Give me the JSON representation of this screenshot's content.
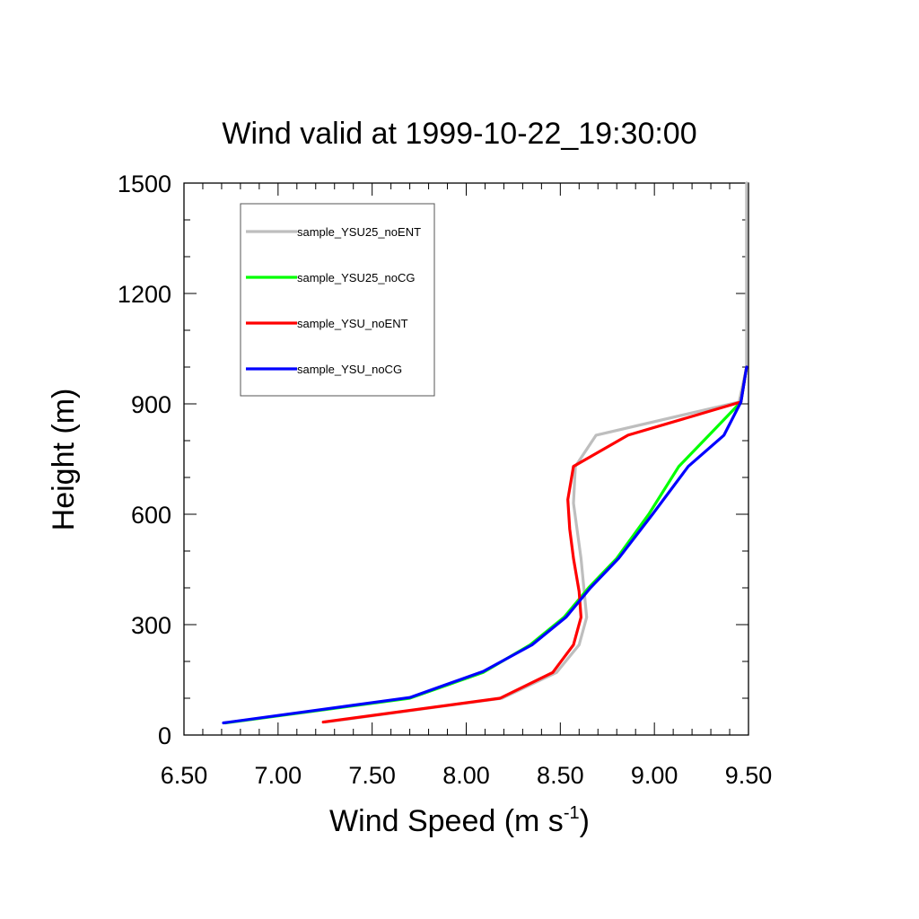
{
  "chart_data": {
    "type": "line",
    "title": "Wind valid at 1999-10-22_19:30:00",
    "xlabel": "Wind Speed (m s",
    "xlabel_sup": "-1",
    "xlabel_end": ")",
    "ylabel": "Height (m)",
    "xlim": [
      6.5,
      9.5
    ],
    "ylim": [
      0,
      1500
    ],
    "xticks": [
      6.5,
      7.0,
      7.5,
      8.0,
      8.5,
      9.0,
      9.5
    ],
    "xtick_labels": [
      "6.50",
      "7.00",
      "7.50",
      "8.00",
      "8.50",
      "9.00",
      "9.50"
    ],
    "yticks": [
      0,
      300,
      600,
      900,
      1200,
      1500
    ],
    "ytick_labels": [
      "0",
      "300",
      "600",
      "900",
      "1200",
      "1500"
    ],
    "grid": false,
    "legend_position": "top-left",
    "series": [
      {
        "name": "sample_YSU25_noENT",
        "color": "#bebebe",
        "points": [
          [
            7.25,
            35
          ],
          [
            8.19,
            100
          ],
          [
            8.48,
            170
          ],
          [
            8.6,
            245
          ],
          [
            8.64,
            320
          ],
          [
            8.61,
            480
          ],
          [
            8.57,
            630
          ],
          [
            8.58,
            730
          ],
          [
            8.69,
            815
          ],
          [
            9.45,
            905
          ],
          [
            9.49,
            1000
          ],
          [
            9.49,
            1200
          ],
          [
            9.49,
            1500
          ]
        ]
      },
      {
        "name": "sample_YSU25_noCG",
        "color": "#00ff00",
        "points": [
          [
            6.72,
            33
          ],
          [
            7.7,
            100
          ],
          [
            8.09,
            170
          ],
          [
            8.34,
            245
          ],
          [
            8.52,
            320
          ],
          [
            8.65,
            400
          ],
          [
            8.8,
            480
          ],
          [
            8.97,
            600
          ],
          [
            9.13,
            730
          ],
          [
            9.3,
            820
          ],
          [
            9.46,
            905
          ],
          [
            9.49,
            1000
          ]
        ]
      },
      {
        "name": "sample_YSU_noENT",
        "color": "#ff0000",
        "points": [
          [
            7.24,
            35
          ],
          [
            8.18,
            100
          ],
          [
            8.46,
            170
          ],
          [
            8.57,
            245
          ],
          [
            8.61,
            320
          ],
          [
            8.6,
            390
          ],
          [
            8.57,
            480
          ],
          [
            8.55,
            560
          ],
          [
            8.54,
            640
          ],
          [
            8.57,
            730
          ],
          [
            8.86,
            815
          ],
          [
            9.46,
            905
          ],
          [
            9.49,
            1000
          ]
        ]
      },
      {
        "name": "sample_YSU_noCG",
        "color": "#0000ff",
        "points": [
          [
            6.71,
            33
          ],
          [
            7.7,
            102
          ],
          [
            8.09,
            173
          ],
          [
            8.35,
            245
          ],
          [
            8.53,
            320
          ],
          [
            8.66,
            400
          ],
          [
            8.81,
            480
          ],
          [
            8.99,
            600
          ],
          [
            9.18,
            730
          ],
          [
            9.37,
            815
          ],
          [
            9.46,
            905
          ],
          [
            9.49,
            1000
          ]
        ]
      }
    ]
  }
}
